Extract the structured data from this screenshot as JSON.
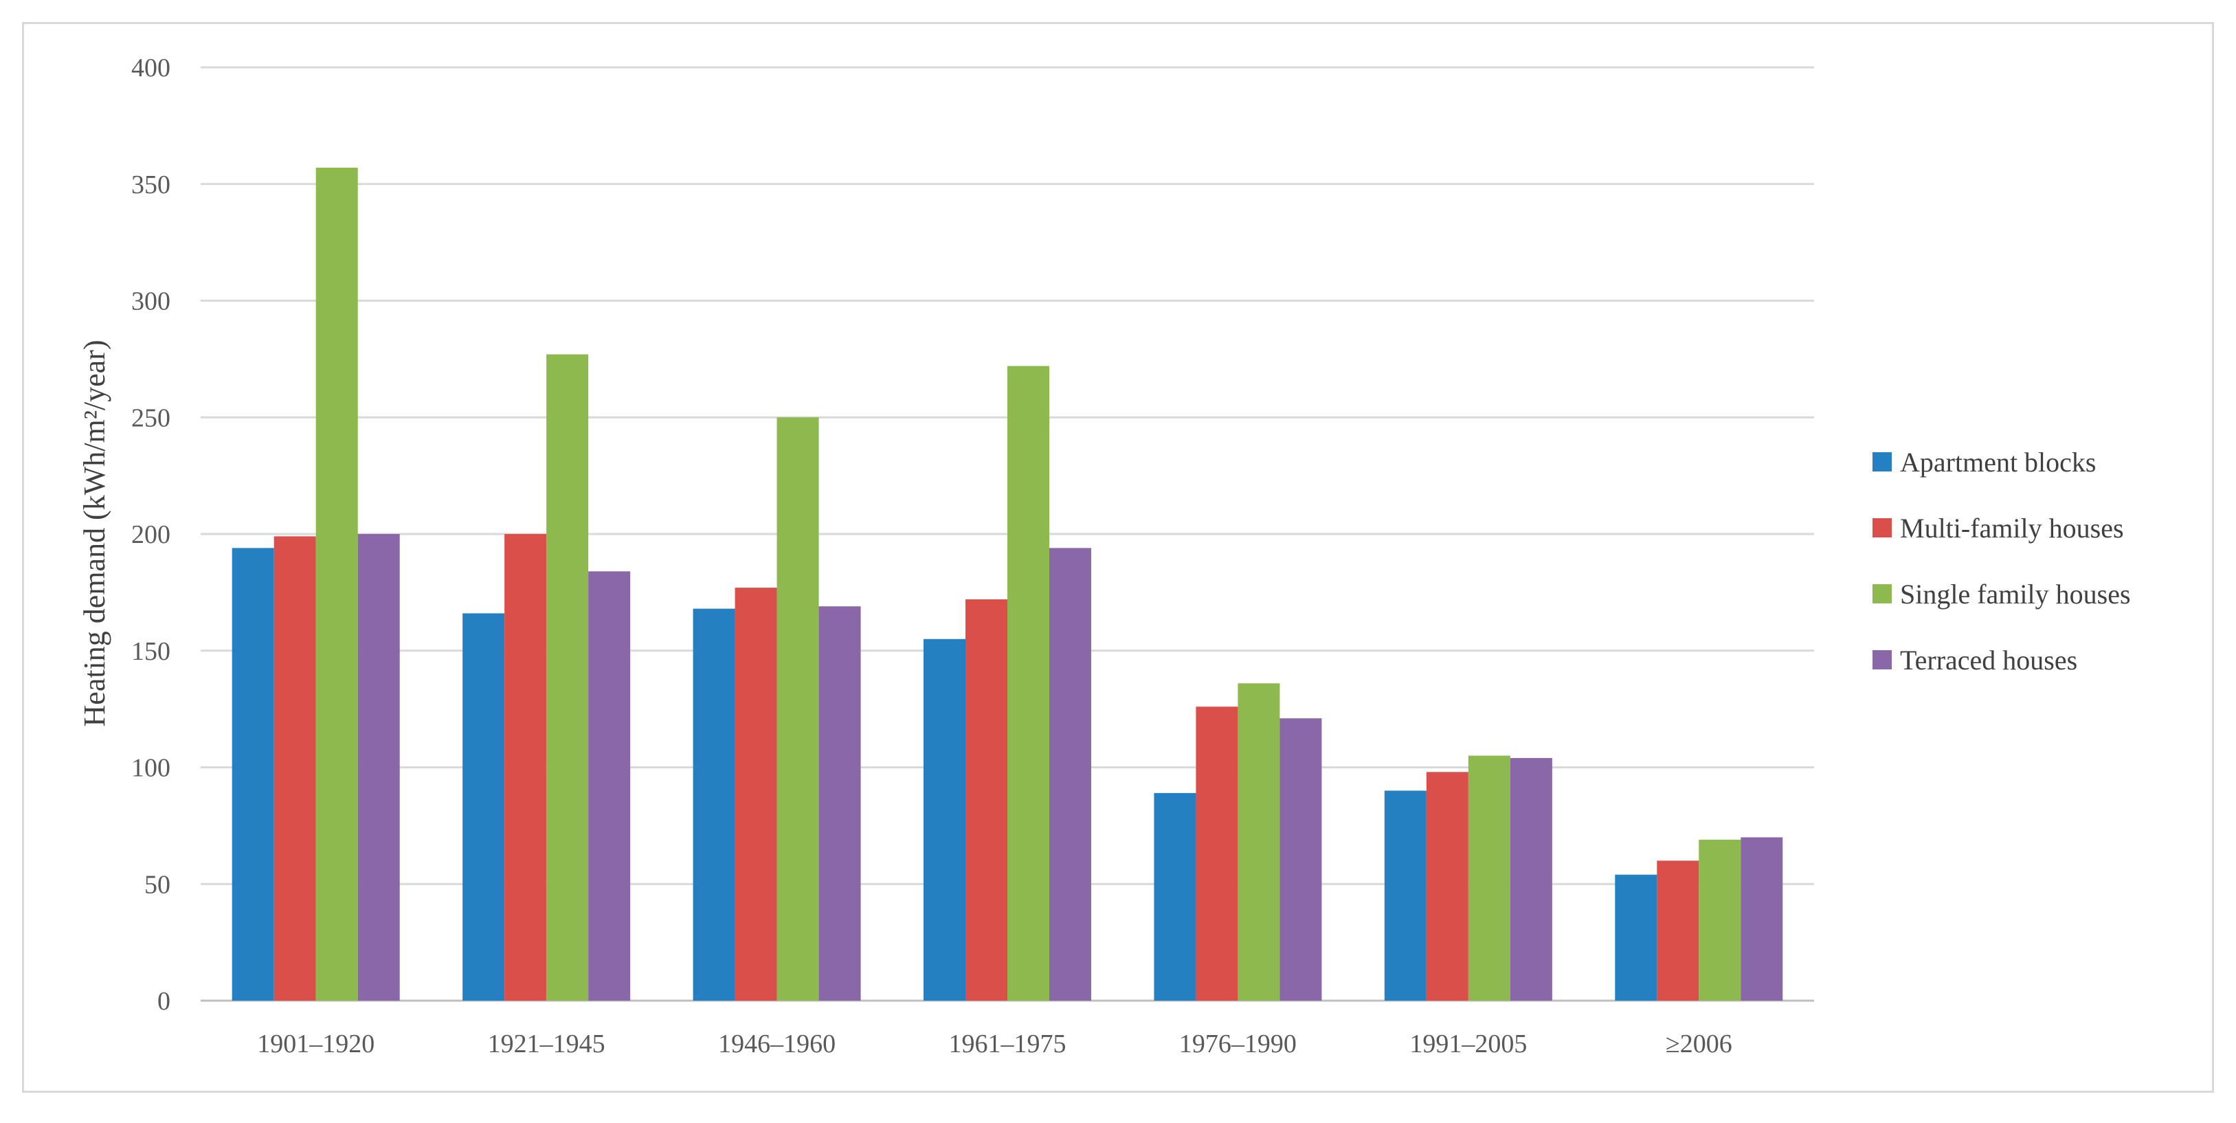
{
  "chart_data": {
    "type": "bar",
    "title": "",
    "xlabel": "",
    "ylabel": "Heating demand (kWh/m²/year)",
    "ylim": [
      0,
      400
    ],
    "yticks": [
      0,
      50,
      100,
      150,
      200,
      250,
      300,
      350,
      400
    ],
    "grid": true,
    "legend_position": "right",
    "categories": [
      "1901–1920",
      "1921–1945",
      "1946–1960",
      "1961–1975",
      "1976–1990",
      "1991–2005",
      "≥2006"
    ],
    "series": [
      {
        "name": "Apartment blocks",
        "color": "#2580C2",
        "values": [
          194,
          166,
          168,
          155,
          89,
          90,
          54
        ]
      },
      {
        "name": "Multi-family houses",
        "color": "#DB4F4B",
        "values": [
          199,
          200,
          177,
          172,
          126,
          98,
          60
        ]
      },
      {
        "name": "Single family houses",
        "color": "#8DB94E",
        "values": [
          357,
          277,
          250,
          272,
          136,
          105,
          69
        ]
      },
      {
        "name": "Terraced houses",
        "color": "#8A67A8",
        "values": [
          200,
          184,
          169,
          194,
          121,
          104,
          70
        ]
      }
    ]
  }
}
